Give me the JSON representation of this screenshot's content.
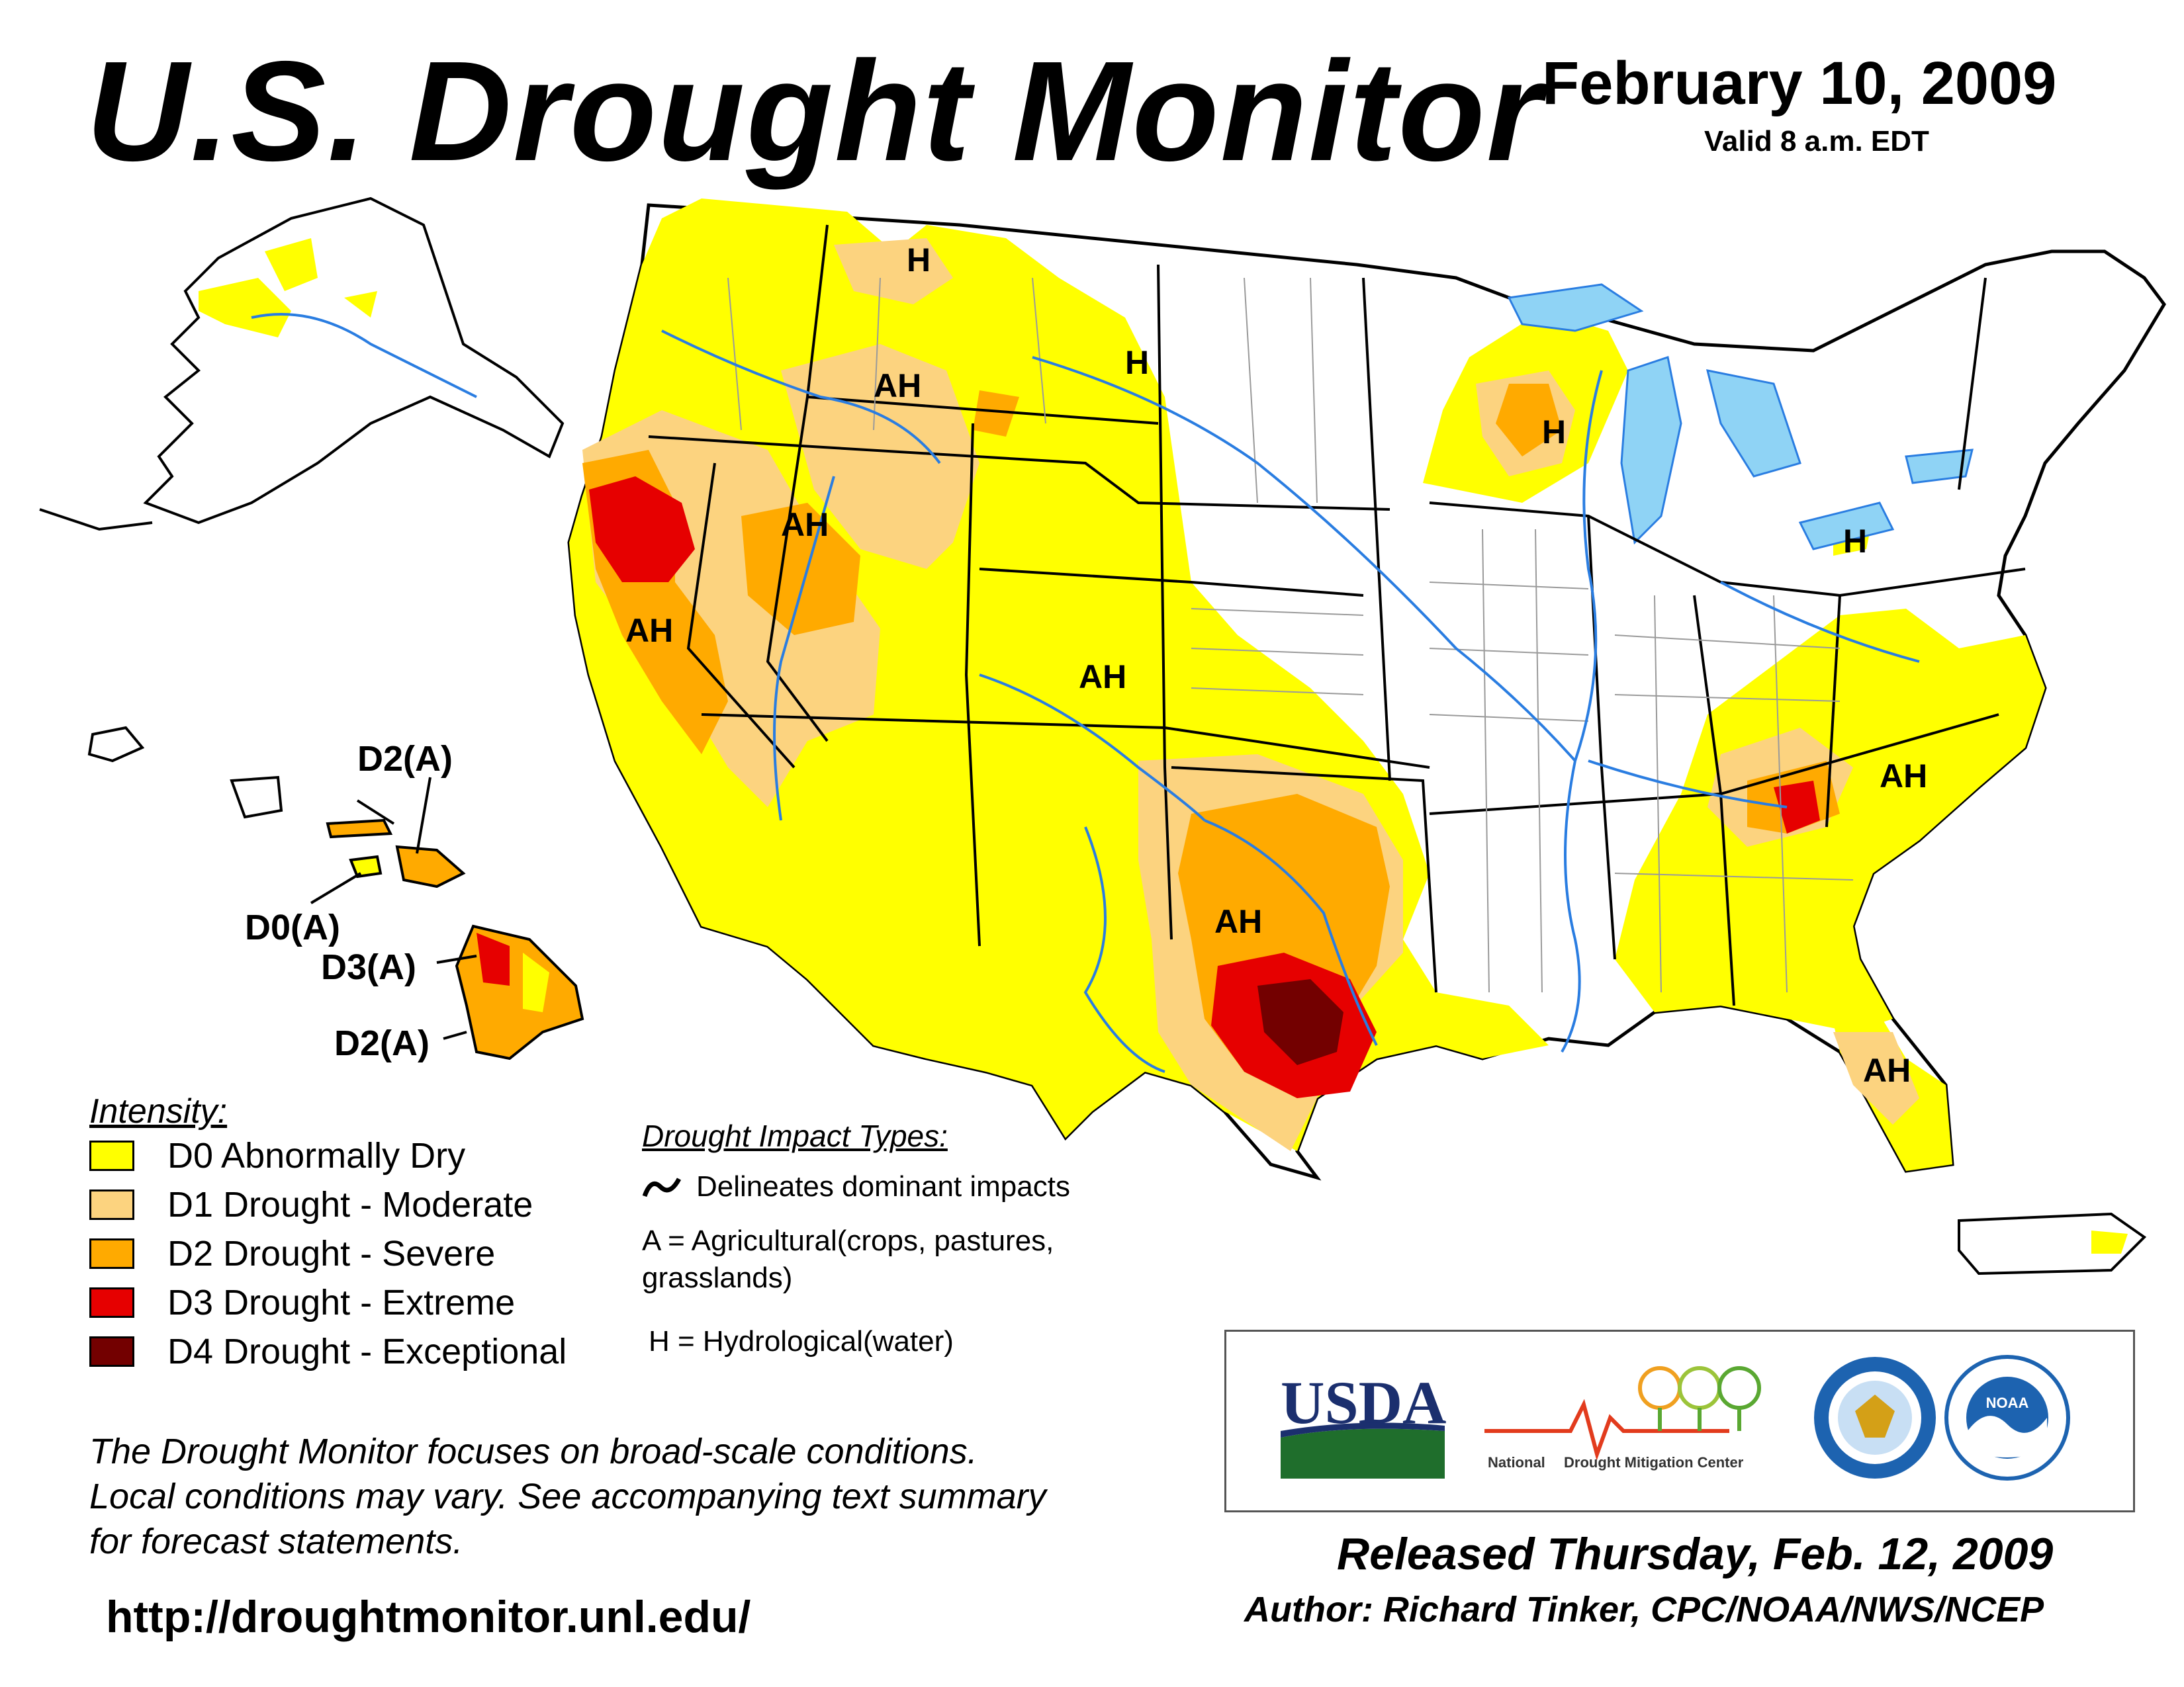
{
  "header": {
    "title": "U.S. Drought Monitor",
    "date": "February 10, 2009",
    "valid": "Valid 8 a.m. EDT"
  },
  "colors": {
    "d0": "#ffff00",
    "d1": "#fcd37f",
    "d2": "#ffaa00",
    "d3": "#e60000",
    "d4": "#730000",
    "water": "#8fd3f5",
    "rivers": "#2a7de1",
    "borders": "#000000",
    "counties": "#9a9a9a"
  },
  "map": {
    "impact_labels": [
      "H",
      "AH",
      "H",
      "H",
      "AH",
      "AH",
      "AH",
      "H",
      "AH",
      "AH",
      "AH"
    ],
    "hawaii_labels": [
      "D2(A)",
      "D0(A)",
      "D3(A)",
      "D2(A)"
    ]
  },
  "legend": {
    "title": "Intensity:",
    "items": [
      {
        "color": "#ffff00",
        "label": "D0 Abnormally Dry"
      },
      {
        "color": "#fcd37f",
        "label": "D1 Drought - Moderate"
      },
      {
        "color": "#ffaa00",
        "label": "D2 Drought - Severe"
      },
      {
        "color": "#e60000",
        "label": "D3 Drought - Extreme"
      },
      {
        "color": "#730000",
        "label": "D4 Drought - Exceptional"
      }
    ]
  },
  "impact_types": {
    "title": "Drought Impact Types:",
    "delineates": "Delineates dominant impacts",
    "agricultural_1": "A = Agricultural(crops, pastures,",
    "agricultural_2": "grasslands)",
    "hydrological": "H = Hydrological(water)"
  },
  "note": {
    "line1": "The Drought Monitor focuses on broad-scale conditions.",
    "line2": "Local conditions may vary. See accompanying text summary",
    "line3": "for forecast statements."
  },
  "url": "http://droughtmonitor.unl.edu/",
  "logos": {
    "usda": "USDA",
    "ndmc_1": "National",
    "ndmc_2": "Drought Mitigation Center",
    "noaa": "NOAA"
  },
  "footer": {
    "released": "Released Thursday, Feb. 12, 2009",
    "author": "Author: Richard Tinker, CPC/NOAA/NWS/NCEP"
  }
}
